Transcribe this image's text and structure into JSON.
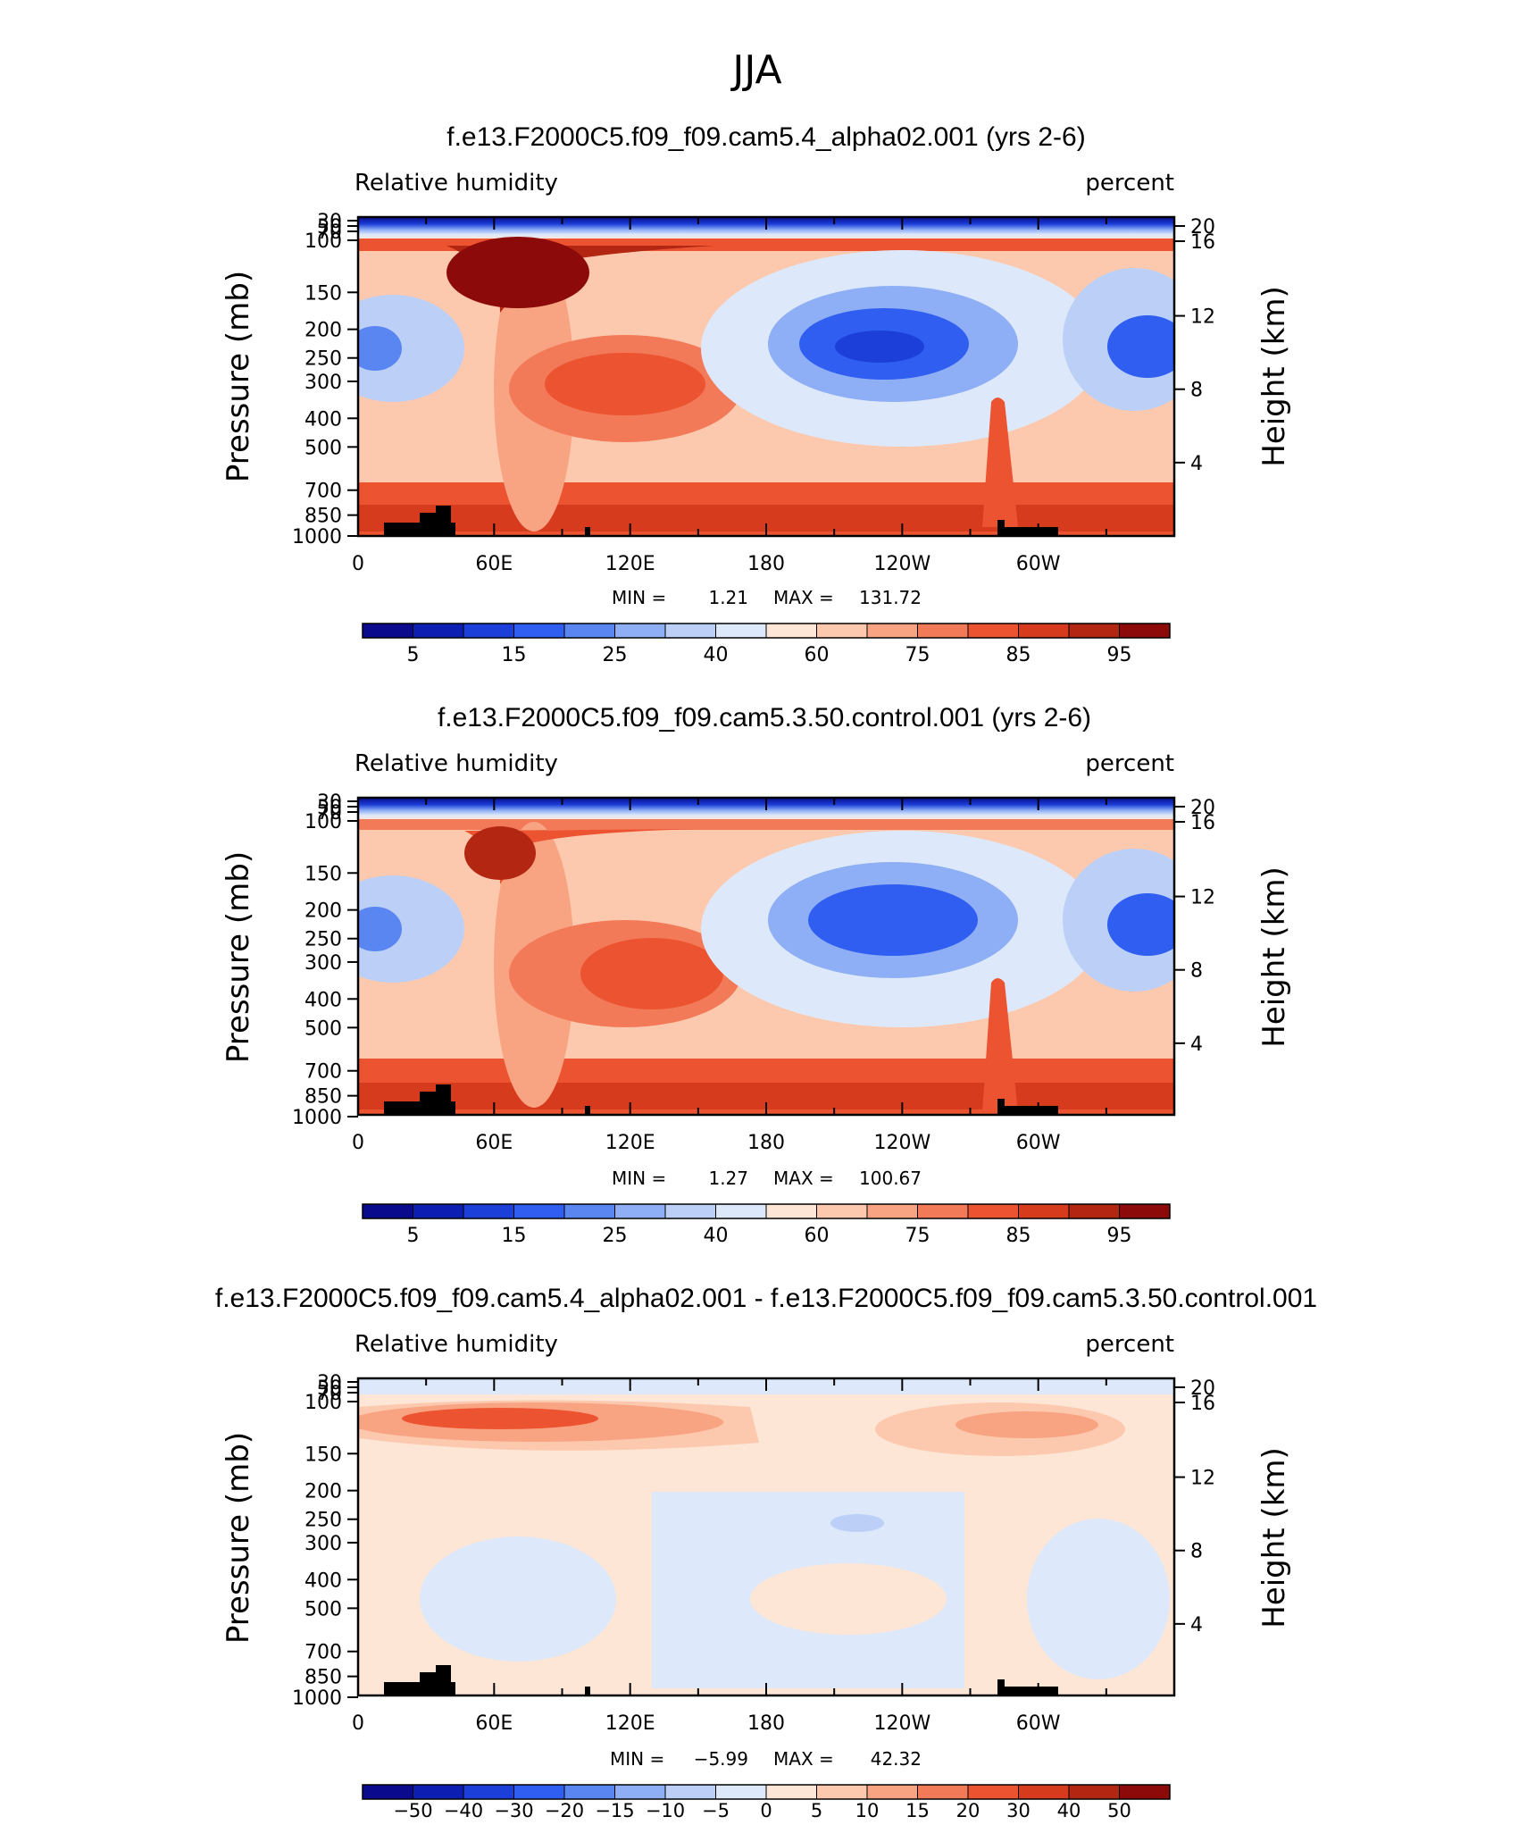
{
  "page_title": "JJA",
  "chart_data": [
    {
      "type": "heatmap",
      "title": "f.e13.F2000C5.f09_f09.cam5.4_alpha02.001 (yrs 2-6)",
      "variable": "Relative humidity",
      "units": "percent",
      "ylabel": "Pressure (mb)",
      "ylabel_right": "Height (km)",
      "x_ticks": [
        "0",
        "60E",
        "120E",
        "180",
        "120W",
        "60W"
      ],
      "pressure_ticks": [
        "30",
        "50",
        "70",
        "100",
        "150",
        "200",
        "250",
        "300",
        "400",
        "500",
        "700",
        "850",
        "1000"
      ],
      "height_ticks": [
        "20",
        "16",
        "12",
        "8",
        "4"
      ],
      "min_label": "MIN =",
      "min_value": "1.21",
      "max_label": "MAX =",
      "max_value": "131.72",
      "colorbar_labels": [
        "5",
        "15",
        "25",
        "40",
        "60",
        "75",
        "85",
        "95"
      ],
      "colorbar_colors": [
        "#0a0a8c",
        "#0d1fb3",
        "#1c3fd9",
        "#2f5ef0",
        "#5a86f2",
        "#8eaef5",
        "#bcd0f7",
        "#dde9fa",
        "#fde6d6",
        "#fcc9ae",
        "#f8a483",
        "#f37a58",
        "#ec5330",
        "#d63b1e",
        "#b32612",
        "#8c0a0a"
      ]
    },
    {
      "type": "heatmap",
      "title": "f.e13.F2000C5.f09_f09.cam5.3.50.control.001 (yrs 2-6)",
      "variable": "Relative humidity",
      "units": "percent",
      "ylabel": "Pressure (mb)",
      "ylabel_right": "Height (km)",
      "x_ticks": [
        "0",
        "60E",
        "120E",
        "180",
        "120W",
        "60W"
      ],
      "pressure_ticks": [
        "30",
        "50",
        "70",
        "100",
        "150",
        "200",
        "250",
        "300",
        "400",
        "500",
        "700",
        "850",
        "1000"
      ],
      "height_ticks": [
        "20",
        "16",
        "12",
        "8",
        "4"
      ],
      "min_label": "MIN =",
      "min_value": "1.27",
      "max_label": "MAX =",
      "max_value": "100.67",
      "colorbar_labels": [
        "5",
        "15",
        "25",
        "40",
        "60",
        "75",
        "85",
        "95"
      ],
      "colorbar_colors": [
        "#0a0a8c",
        "#0d1fb3",
        "#1c3fd9",
        "#2f5ef0",
        "#5a86f2",
        "#8eaef5",
        "#bcd0f7",
        "#dde9fa",
        "#fde6d6",
        "#fcc9ae",
        "#f8a483",
        "#f37a58",
        "#ec5330",
        "#d63b1e",
        "#b32612",
        "#8c0a0a"
      ]
    },
    {
      "type": "heatmap",
      "title": "f.e13.F2000C5.f09_f09.cam5.4_alpha02.001 - f.e13.F2000C5.f09_f09.cam5.3.50.control.001",
      "variable": "Relative humidity",
      "units": "percent",
      "ylabel": "Pressure (mb)",
      "ylabel_right": "Height (km)",
      "x_ticks": [
        "0",
        "60E",
        "120E",
        "180",
        "120W",
        "60W"
      ],
      "pressure_ticks": [
        "30",
        "50",
        "70",
        "100",
        "150",
        "200",
        "250",
        "300",
        "400",
        "500",
        "700",
        "850",
        "1000"
      ],
      "height_ticks": [
        "20",
        "16",
        "12",
        "8",
        "4"
      ],
      "min_label": "MIN =",
      "min_value": "−5.99",
      "max_label": "MAX =",
      "max_value": "42.32",
      "colorbar_labels": [
        "−50",
        "−40",
        "−30",
        "−20",
        "−15",
        "−10",
        "−5",
        "0",
        "5",
        "10",
        "15",
        "20",
        "30",
        "40",
        "50"
      ],
      "colorbar_colors": [
        "#0a0a8c",
        "#0d1fb3",
        "#1c3fd9",
        "#2f5ef0",
        "#5a86f2",
        "#8eaef5",
        "#bcd0f7",
        "#dde9fa",
        "#fde6d6",
        "#fcc9ae",
        "#f8a483",
        "#f37a58",
        "#ec5330",
        "#d63b1e",
        "#b32612",
        "#8c0a0a"
      ]
    }
  ]
}
